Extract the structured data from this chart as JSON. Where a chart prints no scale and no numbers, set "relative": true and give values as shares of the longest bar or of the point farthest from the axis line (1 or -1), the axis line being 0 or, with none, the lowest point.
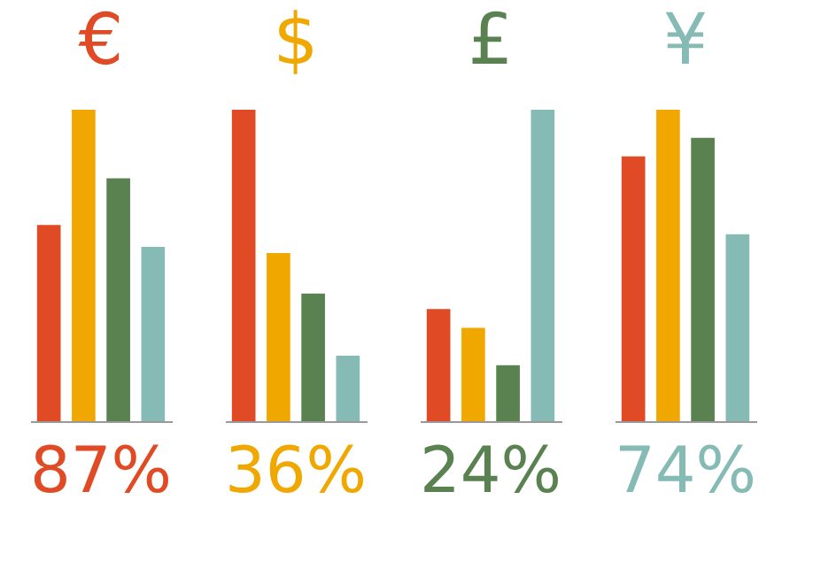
{
  "chart_data": [
    {
      "type": "bar",
      "title": "€",
      "categories": [
        null,
        null,
        null,
        null
      ],
      "relative": true,
      "tick_labels": false,
      "values": [
        0.63,
        1,
        0.78,
        0.56
      ],
      "colors": [
        "#e04a25",
        "#f0a800",
        "#5a8250",
        "#86bab5"
      ],
      "annotations": [
        "87%"
      ]
    },
    {
      "type": "bar",
      "title": "$",
      "categories": [
        null,
        null,
        null,
        null
      ],
      "relative": true,
      "tick_labels": false,
      "values": [
        1,
        0.54,
        0.41,
        0.21
      ],
      "colors": [
        "#e04a25",
        "#f0a800",
        "#5a8250",
        "#86bab5"
      ],
      "annotations": [
        "36%"
      ]
    },
    {
      "type": "bar",
      "title": "£",
      "categories": [
        null,
        null,
        null,
        null
      ],
      "relative": true,
      "tick_labels": false,
      "values": [
        0.36,
        0.3,
        0.18,
        1
      ],
      "colors": [
        "#e04a25",
        "#f0a800",
        "#5a8250",
        "#86bab5"
      ],
      "annotations": [
        "24%"
      ]
    },
    {
      "type": "bar",
      "title": "¥",
      "categories": [
        null,
        null,
        null,
        null
      ],
      "relative": true,
      "tick_labels": false,
      "values": [
        0.85,
        1,
        0.91,
        0.6
      ],
      "colors": [
        "#e04a25",
        "#f0a800",
        "#5a8250",
        "#86bab5"
      ],
      "annotations": [
        "74%"
      ]
    }
  ]
}
